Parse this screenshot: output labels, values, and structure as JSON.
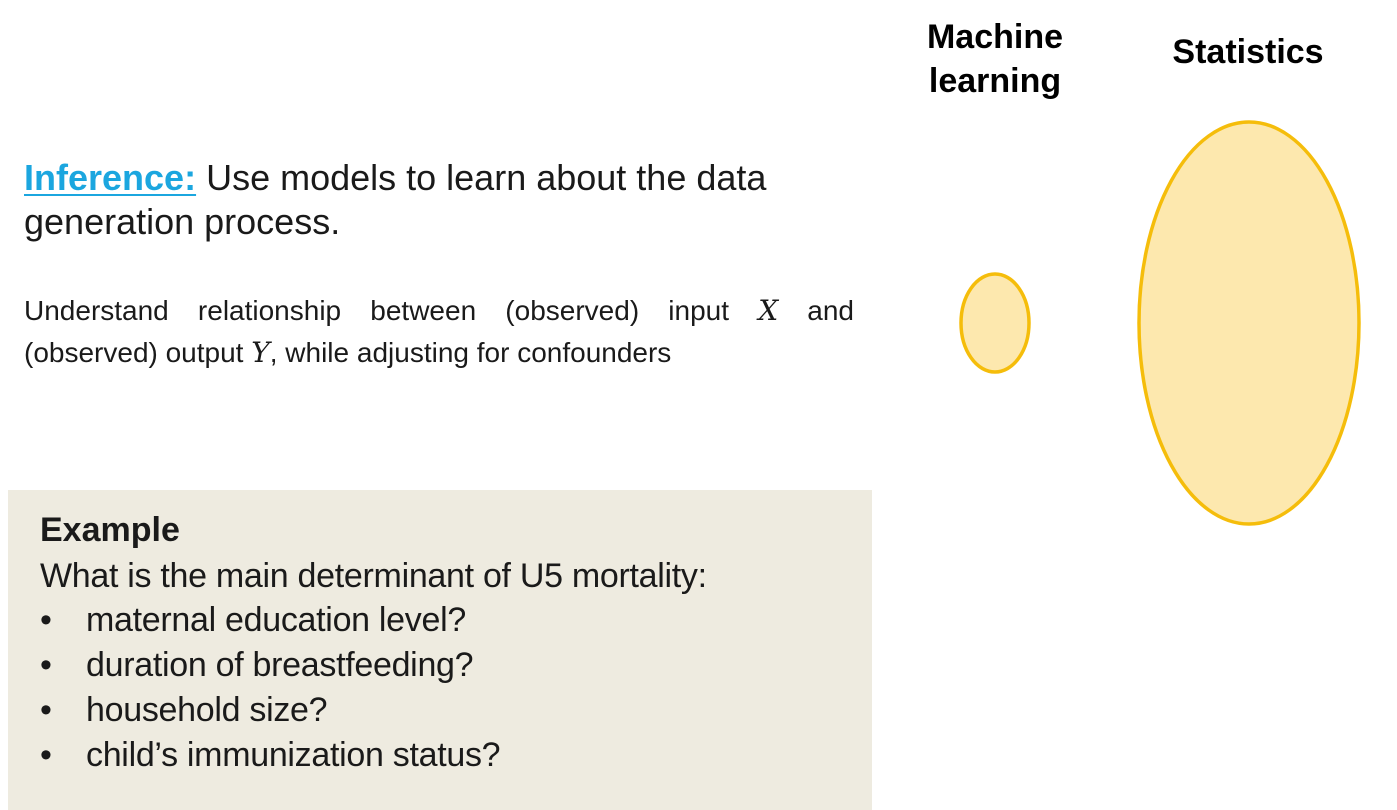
{
  "columns": {
    "machine_learning": {
      "line1": "Machine",
      "line2": "learning"
    },
    "statistics": "Statistics"
  },
  "inference": {
    "term": "Inference:",
    "text_line1": " Use models to learn about the data",
    "text_line2": "generation process."
  },
  "detail": {
    "part1": "Understand relationship between (observed) input ",
    "var_x": "X",
    "part2": " and (observed) output ",
    "var_y": "Y",
    "part3": ", while adjusting for confounders"
  },
  "example": {
    "title": "Example",
    "question": "What is the main determinant of U5 mortality:",
    "bullet_symbol": "•",
    "items": [
      "maternal education level?",
      "duration of breastfeeding?",
      "household size?",
      "child’s immunization status?"
    ]
  },
  "colors": {
    "accent": "#1ba6df",
    "ellipse_fill": "#fde8ae",
    "ellipse_stroke": "#f5bd0b",
    "box_background": "#eeebe0"
  }
}
